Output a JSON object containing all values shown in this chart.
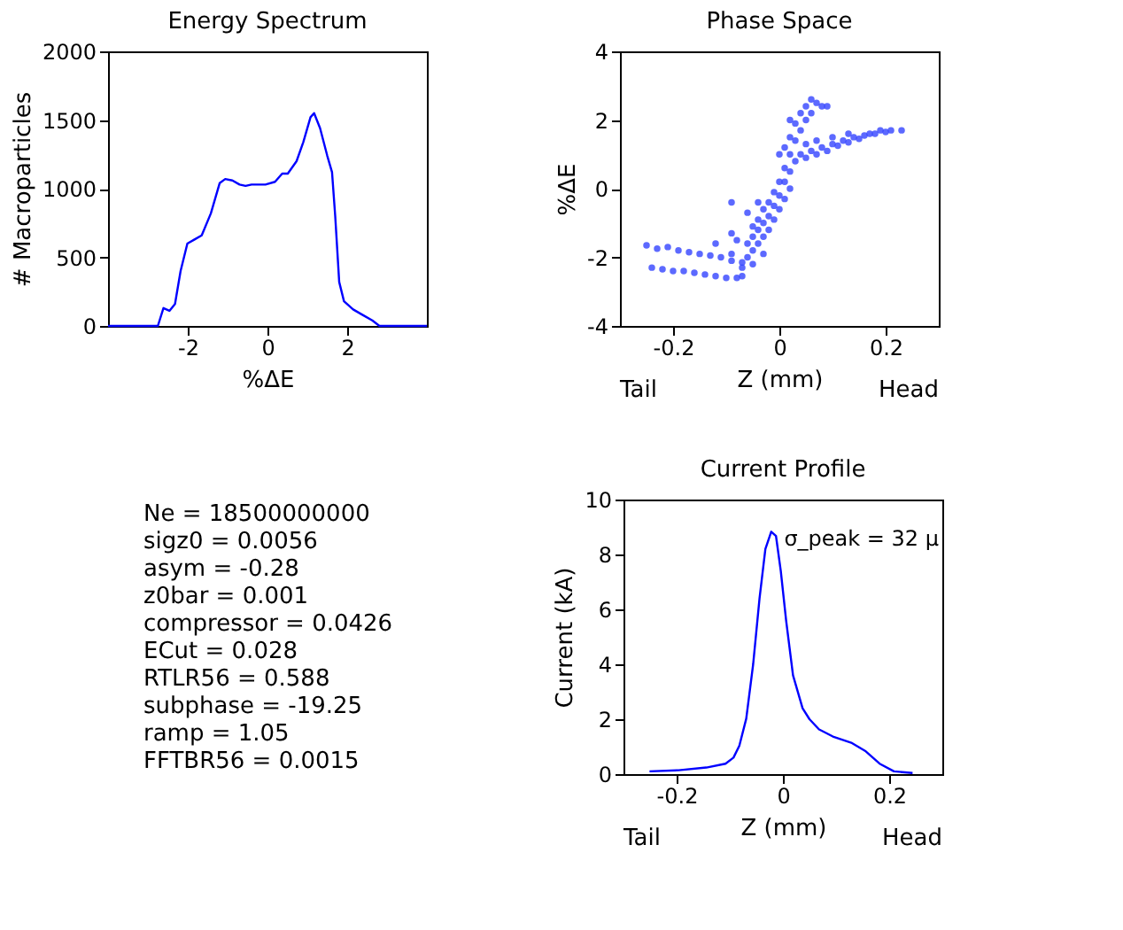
{
  "chart_data": [
    {
      "type": "line",
      "title": "Energy Spectrum",
      "xlabel": "%ΔE",
      "ylabel": "# Macroparticles",
      "xlim": [
        -4,
        4
      ],
      "xticks": [
        -2,
        0,
        2
      ],
      "ylim": [
        0,
        2000
      ],
      "yticks": [
        0,
        500,
        1000,
        1500,
        2000
      ],
      "grid": false,
      "series": [
        {
          "color": "#0000ff",
          "x": [
            -4,
            -2.75,
            -2.61,
            -2.46,
            -2.32,
            -2.18,
            -2.01,
            -1.83,
            -1.65,
            -1.42,
            -1.2,
            -1.06,
            -0.88,
            -0.7,
            -0.55,
            -0.4,
            -0.23,
            -0.05,
            0.19,
            0.37,
            0.51,
            0.73,
            0.9,
            1.08,
            1.17,
            1.32,
            1.5,
            1.62,
            1.7,
            1.8,
            1.92,
            2.15,
            2.39,
            2.63,
            2.81,
            4
          ],
          "values": [
            0,
            0,
            130,
            110,
            160,
            400,
            600,
            630,
            660,
            820,
            1040,
            1070,
            1060,
            1030,
            1020,
            1030,
            1030,
            1030,
            1050,
            1110,
            1110,
            1200,
            1340,
            1520,
            1550,
            1440,
            1240,
            1120,
            800,
            320,
            180,
            120,
            80,
            40,
            0,
            0
          ]
        }
      ]
    },
    {
      "type": "scatter",
      "title": "Phase Space",
      "xlabel": "Z (mm)",
      "ylabel": "%ΔE",
      "xlim": [
        -0.3,
        0.3
      ],
      "xticks": [
        -0.2,
        0,
        0.2
      ],
      "ylim": [
        -4,
        4
      ],
      "yticks": [
        -4,
        -2,
        0,
        2,
        4
      ],
      "grid": false,
      "marker": "circle",
      "annotations": [
        "Tail",
        "Head"
      ],
      "series": [
        {
          "color": "#3344ff",
          "x": [
            -0.25,
            -0.23,
            -0.21,
            -0.19,
            -0.17,
            -0.15,
            -0.13,
            -0.11,
            -0.09,
            -0.07,
            -0.12,
            -0.09,
            -0.24,
            -0.22,
            -0.2,
            -0.18,
            -0.16,
            -0.14,
            -0.12,
            -0.1,
            -0.08,
            -0.07,
            -0.07,
            -0.06,
            -0.06,
            -0.05,
            -0.05,
            -0.05,
            -0.04,
            -0.04,
            -0.04,
            -0.03,
            -0.03,
            -0.03,
            -0.02,
            -0.02,
            -0.02,
            -0.01,
            -0.01,
            -0.01,
            0.0,
            0.0,
            0.0,
            0.01,
            0.01,
            0.01,
            0.02,
            0.02,
            0.02,
            -0.04,
            -0.06,
            -0.08,
            -0.09,
            -0.03,
            -0.05,
            -0.09,
            0.01,
            0.02,
            0.03,
            0.03,
            0.04,
            0.04,
            0.05,
            0.05,
            0.06,
            0.06,
            0.07,
            0.08,
            0.09,
            0.02,
            0.0,
            0.03,
            0.04,
            0.05,
            0.06,
            0.07,
            0.08,
            0.09,
            0.1,
            0.11,
            0.12,
            0.13,
            0.14,
            0.15,
            0.16,
            0.17,
            0.18,
            0.19,
            0.2,
            0.21,
            0.23,
            0.05,
            0.07,
            0.1,
            0.13
          ],
          "values": [
            -1.65,
            -1.75,
            -1.7,
            -1.8,
            -1.85,
            -1.9,
            -1.95,
            -2.0,
            -2.1,
            -2.15,
            -1.6,
            -1.3,
            -2.3,
            -2.35,
            -2.4,
            -2.4,
            -2.45,
            -2.5,
            -2.55,
            -2.6,
            -2.6,
            -2.55,
            -2.3,
            -2.0,
            -1.6,
            -1.8,
            -1.4,
            -1.1,
            -1.6,
            -1.2,
            -0.9,
            -1.4,
            -1.0,
            -0.6,
            -1.2,
            -0.8,
            -0.4,
            -0.9,
            -0.5,
            -0.1,
            -0.6,
            -0.2,
            0.2,
            -0.3,
            0.2,
            0.6,
            0.0,
            0.5,
            1.0,
            -0.4,
            -0.7,
            -1.5,
            -1.9,
            -1.9,
            -2.2,
            -0.4,
            1.2,
            1.5,
            1.4,
            1.9,
            1.7,
            2.2,
            2.0,
            2.4,
            2.2,
            2.6,
            2.5,
            2.4,
            2.4,
            2.0,
            1.0,
            0.8,
            1.0,
            0.9,
            1.1,
            1.0,
            1.2,
            1.1,
            1.3,
            1.25,
            1.4,
            1.35,
            1.5,
            1.45,
            1.55,
            1.6,
            1.6,
            1.7,
            1.65,
            1.7,
            1.7,
            1.3,
            1.4,
            1.5,
            1.6
          ]
        }
      ]
    },
    {
      "type": "other",
      "annotations": [
        "Ne = 18500000000",
        "sigz0 = 0.0056",
        "asym = -0.28",
        "z0bar = 0.001",
        "compressor = 0.0426",
        "ECut = 0.028",
        "RTLR56 = 0.588",
        "subphase = -19.25",
        "ramp = 1.05",
        "FFTBR56 = 0.0015"
      ]
    },
    {
      "type": "line",
      "title": "Current Profile",
      "xlabel": "Z (mm)",
      "ylabel": "Current (kA)",
      "xlim": [
        -0.3,
        0.3
      ],
      "xticks": [
        -0.2,
        0,
        0.2
      ],
      "ylim": [
        0,
        10
      ],
      "yticks": [
        0,
        2,
        4,
        6,
        8,
        10
      ],
      "grid": false,
      "annotations": [
        "Tail",
        "Head",
        "σ_peak = 32 μ"
      ],
      "series": [
        {
          "color": "#0000ff",
          "x": [
            -0.251,
            -0.196,
            -0.144,
            -0.108,
            -0.093,
            -0.082,
            -0.069,
            -0.056,
            -0.044,
            -0.033,
            -0.022,
            -0.013,
            -0.004,
            0.006,
            0.019,
            0.037,
            0.05,
            0.068,
            0.094,
            0.13,
            0.156,
            0.182,
            0.209,
            0.244
          ],
          "values": [
            0.1,
            0.14,
            0.24,
            0.38,
            0.6,
            1.03,
            2.02,
            4.0,
            6.4,
            8.2,
            8.83,
            8.67,
            7.4,
            5.6,
            3.6,
            2.4,
            2.0,
            1.63,
            1.37,
            1.13,
            0.83,
            0.38,
            0.1,
            0.04
          ]
        }
      ]
    }
  ]
}
